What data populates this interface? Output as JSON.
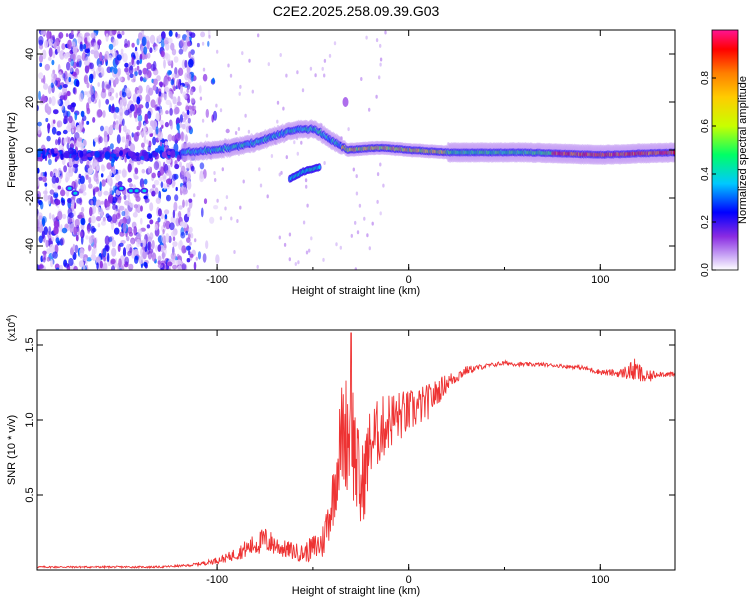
{
  "title": "C2E2.2025.258.09.39.G03",
  "chart_data": [
    {
      "type": "heatmap",
      "title": "C2E2.2025.258.09.39.G03",
      "xlabel": "Height of straight line (km)",
      "ylabel": "Frequency (Hz)",
      "xlim": [
        -194,
        139
      ],
      "ylim": [
        -50,
        50
      ],
      "x_ticks": [
        -100,
        0,
        100
      ],
      "y_ticks": [
        -40,
        -20,
        0,
        20,
        40
      ],
      "grid": false,
      "colorbar": {
        "label": "Normalized spectral amplitude",
        "range": [
          0,
          1
        ],
        "ticks": [
          0.0,
          0.2,
          0.4,
          0.6,
          0.8
        ],
        "colormap": [
          "#ffffff",
          "#c9a6f5",
          "#8a2be2",
          "#0000ff",
          "#00c8ff",
          "#00ff66",
          "#c8ff00",
          "#ffcc00",
          "#ff7f00",
          "#ff0000",
          "#ff1493"
        ]
      },
      "ridge": [
        {
          "x": -118,
          "f": -1
        },
        {
          "x": -100,
          "f": 0
        },
        {
          "x": -80,
          "f": 3
        },
        {
          "x": -62,
          "f": 8
        },
        {
          "x": -50,
          "f": 9
        },
        {
          "x": -40,
          "f": 4
        },
        {
          "x": -32,
          "f": 0
        },
        {
          "x": -15,
          "f": 1
        },
        {
          "x": 0,
          "f": 0
        },
        {
          "x": 20,
          "f": -1
        },
        {
          "x": 60,
          "f": -1
        },
        {
          "x": 100,
          "f": -2
        },
        {
          "x": 139,
          "f": -1
        }
      ],
      "secondary_ridge": [
        {
          "x": -62,
          "f": -12
        },
        {
          "x": -55,
          "f": -9
        },
        {
          "x": -46,
          "f": -7
        }
      ]
    },
    {
      "type": "line",
      "xlabel": "Height of straight line (km)",
      "ylabel": "SNR (10 * v/v)",
      "y_scale_label": "(x10",
      "y_scale_exp": "4",
      "xlim": [
        -194,
        139
      ],
      "ylim": [
        0,
        1.6
      ],
      "x_ticks": [
        -100,
        0,
        100
      ],
      "y_ticks": [
        0.5,
        1.0,
        1.5
      ],
      "y_tick_labels": [
        "0.5",
        "1.0",
        "1.5"
      ],
      "grid": false,
      "series": [
        {
          "name": "SNR",
          "color": "#ee3333",
          "x": [
            -194,
            -170,
            -150,
            -130,
            -115,
            -105,
            -95,
            -85,
            -75,
            -65,
            -55,
            -45,
            -40,
            -35,
            -30,
            -25,
            -20,
            -10,
            0,
            10,
            20,
            30,
            40,
            50,
            60,
            70,
            80,
            90,
            100,
            110,
            118,
            124,
            130,
            139
          ],
          "values": [
            0.02,
            0.02,
            0.02,
            0.02,
            0.03,
            0.05,
            0.08,
            0.14,
            0.2,
            0.14,
            0.11,
            0.18,
            0.45,
            0.9,
            0.95,
            0.5,
            0.85,
            1.0,
            1.05,
            1.12,
            1.25,
            1.33,
            1.36,
            1.38,
            1.37,
            1.37,
            1.36,
            1.35,
            1.32,
            1.31,
            1.33,
            1.28,
            1.31,
            1.3
          ],
          "noise_amp": [
            0.006,
            0.006,
            0.006,
            0.006,
            0.008,
            0.015,
            0.03,
            0.06,
            0.09,
            0.06,
            0.06,
            0.12,
            0.2,
            0.35,
            0.45,
            0.3,
            0.25,
            0.2,
            0.15,
            0.12,
            0.06,
            0.03,
            0.015,
            0.015,
            0.015,
            0.012,
            0.012,
            0.015,
            0.02,
            0.025,
            0.08,
            0.05,
            0.02,
            0.02
          ]
        }
      ],
      "peak": {
        "x": -30,
        "value": 1.58
      }
    }
  ]
}
